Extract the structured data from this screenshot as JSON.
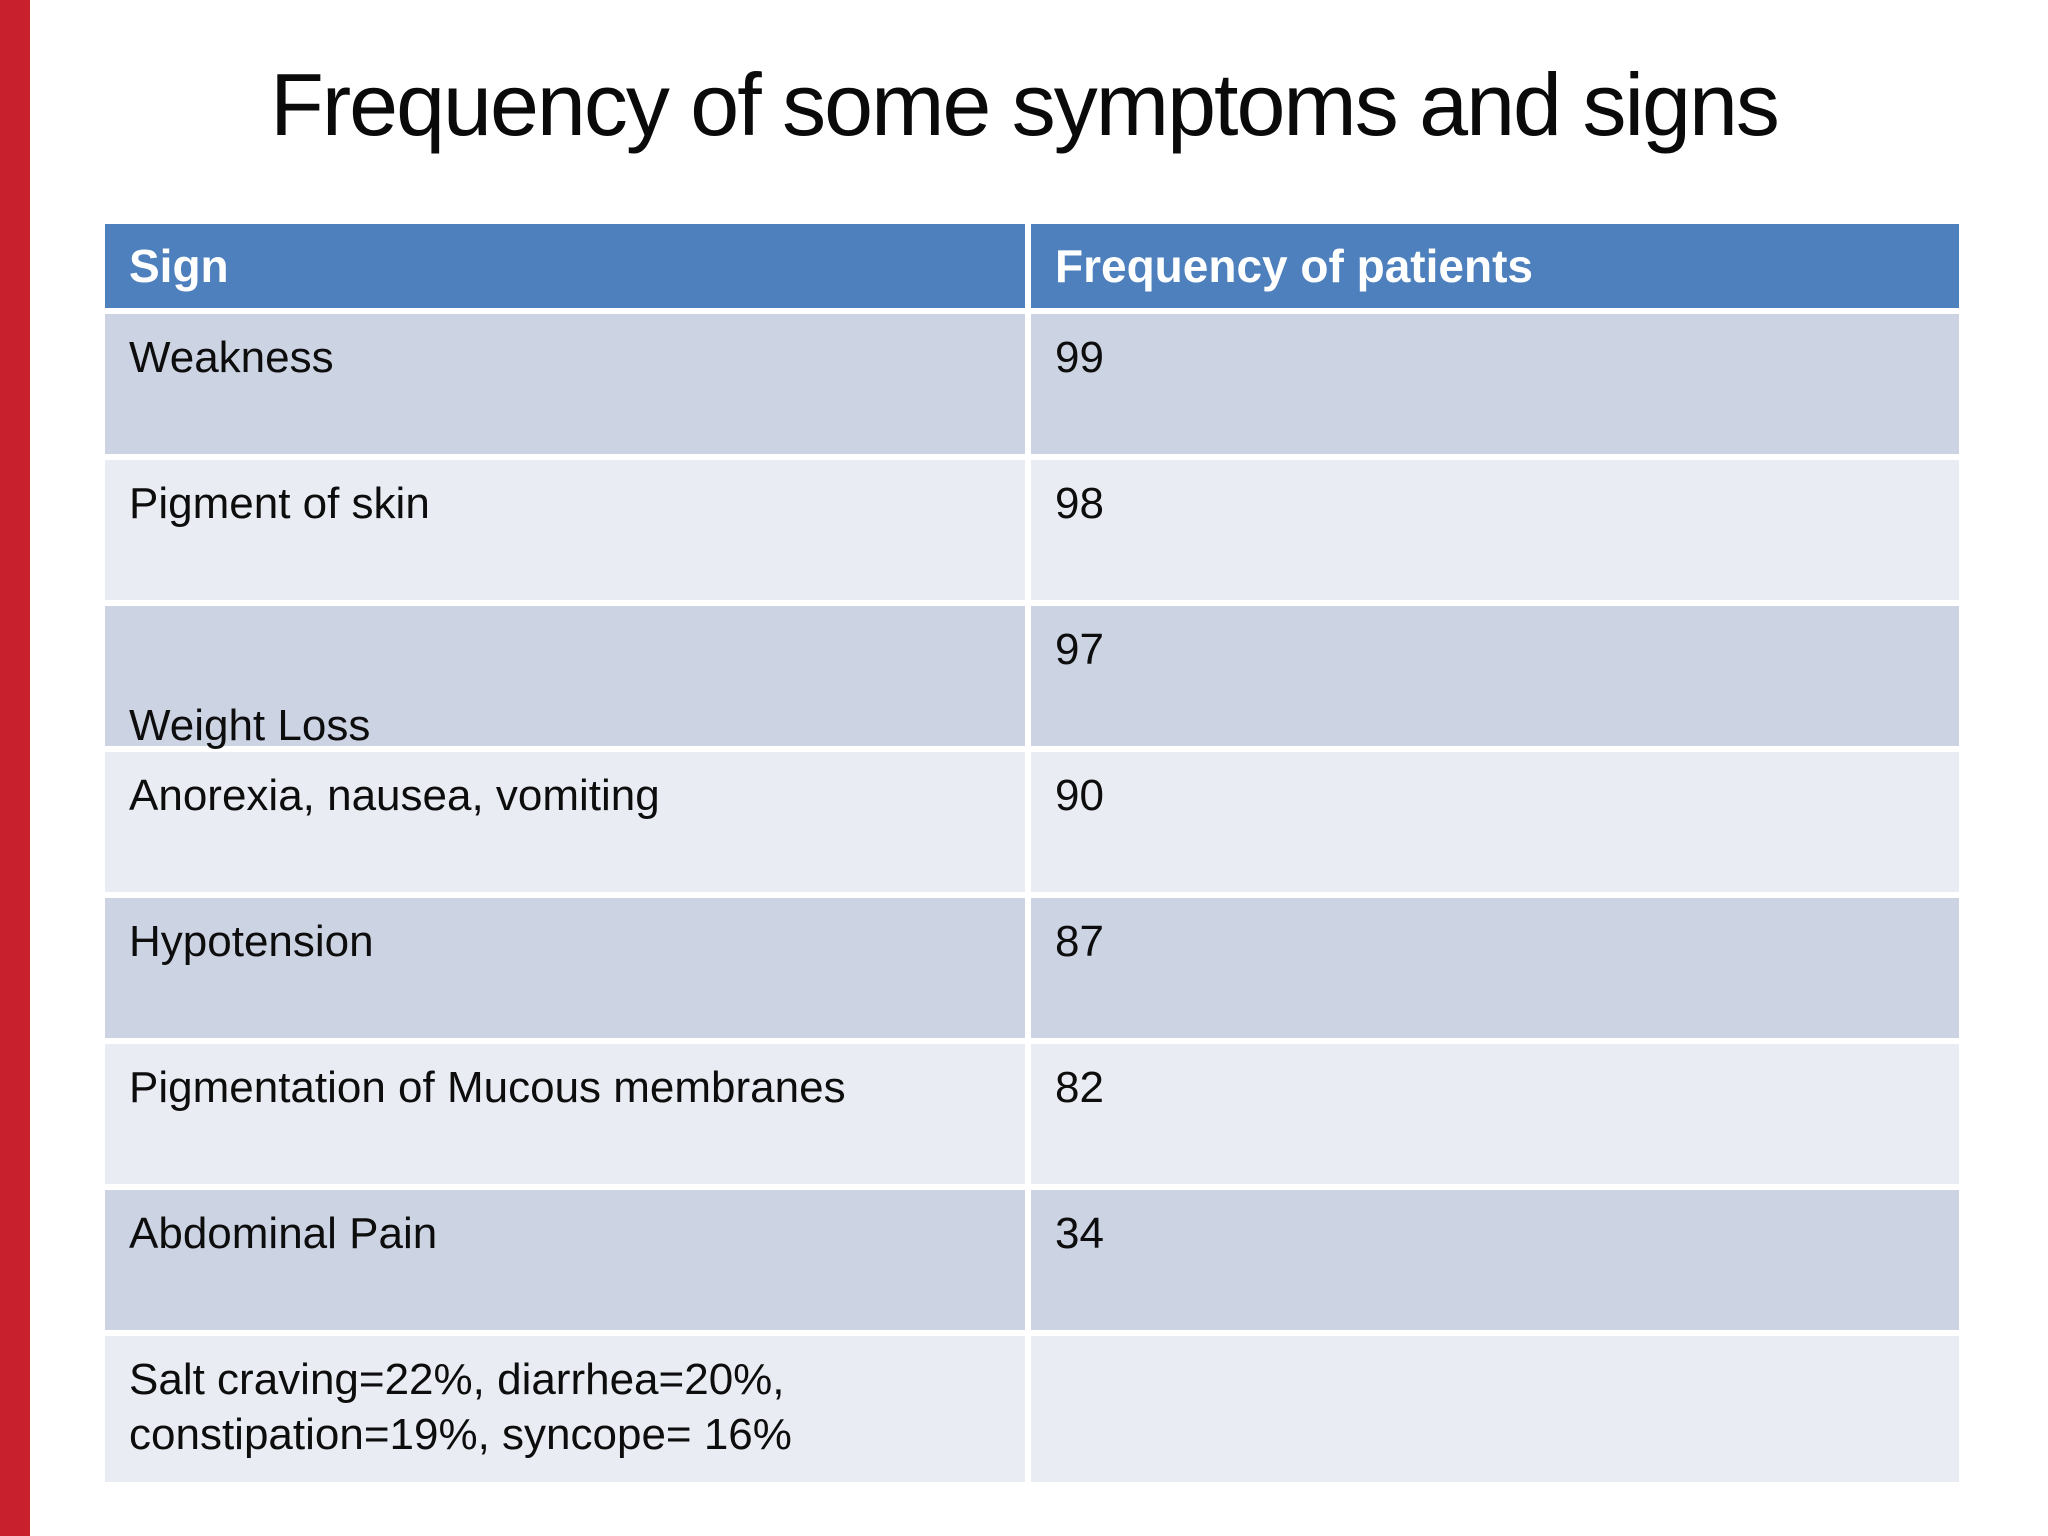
{
  "slide": {
    "title": "Frequency of some symptoms and signs",
    "accent_bar_color": "#c9202e"
  },
  "table": {
    "header_bg": "#4d80bd",
    "row_dark_bg": "#ccd4e4",
    "row_light_bg": "#e9ecf3",
    "headers": [
      "Sign",
      "Frequency of patients"
    ],
    "rows": [
      {
        "sign": "Weakness",
        "value": "99"
      },
      {
        "sign": "Pigment of skin",
        "value": "98"
      },
      {
        "sign": "Weight Loss",
        "value": "97"
      },
      {
        "sign": "Anorexia, nausea, vomiting",
        "value": "90"
      },
      {
        "sign": "Hypotension",
        "value": "87"
      },
      {
        "sign": "Pigmentation of Mucous membranes",
        "value": "82"
      },
      {
        "sign": "Abdominal Pain",
        "value": "34"
      },
      {
        "sign": "Salt craving=22%, diarrhea=20%, constipation=19%, syncope= 16%",
        "value": ""
      }
    ]
  },
  "chart_data": {
    "type": "table",
    "title": "Frequency of some symptoms and signs",
    "columns": [
      "Sign",
      "Frequency of patients"
    ],
    "rows": [
      [
        "Weakness",
        99
      ],
      [
        "Pigment of skin",
        98
      ],
      [
        "Weight Loss",
        97
      ],
      [
        "Anorexia, nausea, vomiting",
        90
      ],
      [
        "Hypotension",
        87
      ],
      [
        "Pigmentation of Mucous membranes",
        82
      ],
      [
        "Abdominal Pain",
        34
      ],
      [
        "Salt craving=22%, diarrhea=20%, constipation=19%, syncope= 16%",
        null
      ]
    ]
  }
}
